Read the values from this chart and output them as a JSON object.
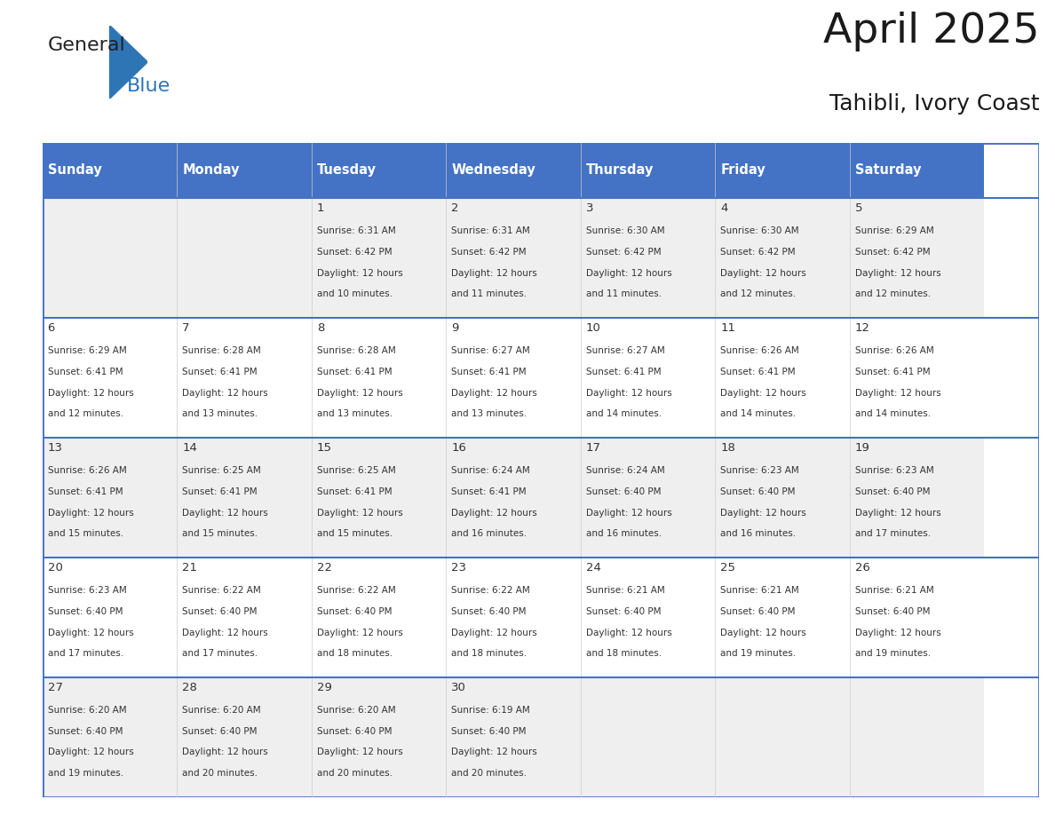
{
  "title": "April 2025",
  "subtitle": "Tahibli, Ivory Coast",
  "header_bg_color": "#4472C4",
  "header_text_color": "#FFFFFF",
  "header_font_size": 10.5,
  "day_names": [
    "Sunday",
    "Monday",
    "Tuesday",
    "Wednesday",
    "Thursday",
    "Friday",
    "Saturday"
  ],
  "title_font_size": 34,
  "subtitle_font_size": 18,
  "cell_bg_even": "#EFEFEF",
  "cell_bg_odd": "#FFFFFF",
  "border_color": "#4472C4",
  "text_color": "#333333",
  "cell_text_size": 7.5,
  "day_num_size": 9.5,
  "logo_general_color": "#222222",
  "logo_blue_color": "#2E75B6",
  "weeks": [
    [
      {
        "day": "",
        "sunrise": "",
        "sunset": "",
        "daylight": ""
      },
      {
        "day": "",
        "sunrise": "",
        "sunset": "",
        "daylight": ""
      },
      {
        "day": "1",
        "sunrise": "6:31 AM",
        "sunset": "6:42 PM",
        "daylight": "12 hours and 10 minutes."
      },
      {
        "day": "2",
        "sunrise": "6:31 AM",
        "sunset": "6:42 PM",
        "daylight": "12 hours and 11 minutes."
      },
      {
        "day": "3",
        "sunrise": "6:30 AM",
        "sunset": "6:42 PM",
        "daylight": "12 hours and 11 minutes."
      },
      {
        "day": "4",
        "sunrise": "6:30 AM",
        "sunset": "6:42 PM",
        "daylight": "12 hours and 12 minutes."
      },
      {
        "day": "5",
        "sunrise": "6:29 AM",
        "sunset": "6:42 PM",
        "daylight": "12 hours and 12 minutes."
      }
    ],
    [
      {
        "day": "6",
        "sunrise": "6:29 AM",
        "sunset": "6:41 PM",
        "daylight": "12 hours and 12 minutes."
      },
      {
        "day": "7",
        "sunrise": "6:28 AM",
        "sunset": "6:41 PM",
        "daylight": "12 hours and 13 minutes."
      },
      {
        "day": "8",
        "sunrise": "6:28 AM",
        "sunset": "6:41 PM",
        "daylight": "12 hours and 13 minutes."
      },
      {
        "day": "9",
        "sunrise": "6:27 AM",
        "sunset": "6:41 PM",
        "daylight": "12 hours and 13 minutes."
      },
      {
        "day": "10",
        "sunrise": "6:27 AM",
        "sunset": "6:41 PM",
        "daylight": "12 hours and 14 minutes."
      },
      {
        "day": "11",
        "sunrise": "6:26 AM",
        "sunset": "6:41 PM",
        "daylight": "12 hours and 14 minutes."
      },
      {
        "day": "12",
        "sunrise": "6:26 AM",
        "sunset": "6:41 PM",
        "daylight": "12 hours and 14 minutes."
      }
    ],
    [
      {
        "day": "13",
        "sunrise": "6:26 AM",
        "sunset": "6:41 PM",
        "daylight": "12 hours and 15 minutes."
      },
      {
        "day": "14",
        "sunrise": "6:25 AM",
        "sunset": "6:41 PM",
        "daylight": "12 hours and 15 minutes."
      },
      {
        "day": "15",
        "sunrise": "6:25 AM",
        "sunset": "6:41 PM",
        "daylight": "12 hours and 15 minutes."
      },
      {
        "day": "16",
        "sunrise": "6:24 AM",
        "sunset": "6:41 PM",
        "daylight": "12 hours and 16 minutes."
      },
      {
        "day": "17",
        "sunrise": "6:24 AM",
        "sunset": "6:40 PM",
        "daylight": "12 hours and 16 minutes."
      },
      {
        "day": "18",
        "sunrise": "6:23 AM",
        "sunset": "6:40 PM",
        "daylight": "12 hours and 16 minutes."
      },
      {
        "day": "19",
        "sunrise": "6:23 AM",
        "sunset": "6:40 PM",
        "daylight": "12 hours and 17 minutes."
      }
    ],
    [
      {
        "day": "20",
        "sunrise": "6:23 AM",
        "sunset": "6:40 PM",
        "daylight": "12 hours and 17 minutes."
      },
      {
        "day": "21",
        "sunrise": "6:22 AM",
        "sunset": "6:40 PM",
        "daylight": "12 hours and 17 minutes."
      },
      {
        "day": "22",
        "sunrise": "6:22 AM",
        "sunset": "6:40 PM",
        "daylight": "12 hours and 18 minutes."
      },
      {
        "day": "23",
        "sunrise": "6:22 AM",
        "sunset": "6:40 PM",
        "daylight": "12 hours and 18 minutes."
      },
      {
        "day": "24",
        "sunrise": "6:21 AM",
        "sunset": "6:40 PM",
        "daylight": "12 hours and 18 minutes."
      },
      {
        "day": "25",
        "sunrise": "6:21 AM",
        "sunset": "6:40 PM",
        "daylight": "12 hours and 19 minutes."
      },
      {
        "day": "26",
        "sunrise": "6:21 AM",
        "sunset": "6:40 PM",
        "daylight": "12 hours and 19 minutes."
      }
    ],
    [
      {
        "day": "27",
        "sunrise": "6:20 AM",
        "sunset": "6:40 PM",
        "daylight": "12 hours and 19 minutes."
      },
      {
        "day": "28",
        "sunrise": "6:20 AM",
        "sunset": "6:40 PM",
        "daylight": "12 hours and 20 minutes."
      },
      {
        "day": "29",
        "sunrise": "6:20 AM",
        "sunset": "6:40 PM",
        "daylight": "12 hours and 20 minutes."
      },
      {
        "day": "30",
        "sunrise": "6:19 AM",
        "sunset": "6:40 PM",
        "daylight": "12 hours and 20 minutes."
      },
      {
        "day": "",
        "sunrise": "",
        "sunset": "",
        "daylight": ""
      },
      {
        "day": "",
        "sunrise": "",
        "sunset": "",
        "daylight": ""
      },
      {
        "day": "",
        "sunrise": "",
        "sunset": "",
        "daylight": ""
      }
    ]
  ]
}
